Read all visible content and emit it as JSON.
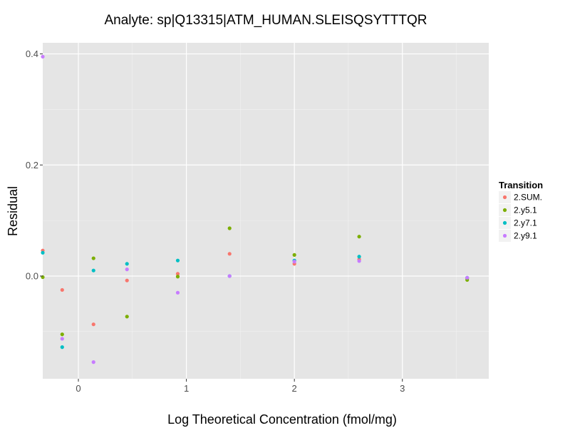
{
  "chart_data": {
    "type": "scatter",
    "title": "Analyte: sp|Q13315|ATM_HUMAN.SLEISQSYTTTQR",
    "xlabel": "Log Theoretical Concentration (fmol/mg)",
    "ylabel": "Residual",
    "xlim": [
      -0.33,
      3.8
    ],
    "ylim": [
      -0.185,
      0.42
    ],
    "x_ticks": [
      0,
      1,
      2,
      3
    ],
    "x_tick_labels": [
      "0",
      "1",
      "2",
      "3"
    ],
    "y_ticks": [
      0.0,
      0.2,
      0.4
    ],
    "y_tick_labels": [
      "0.0",
      "0.2",
      "0.4"
    ],
    "grid": true,
    "legend": {
      "title": "Transition",
      "position": "right"
    },
    "series": [
      {
        "name": "2.SUM.",
        "color": "#F8766D",
        "points": [
          [
            -0.33,
            0.046
          ],
          [
            -0.15,
            -0.025
          ],
          [
            0.14,
            -0.087
          ],
          [
            0.45,
            -0.008
          ],
          [
            0.92,
            0.004
          ],
          [
            1.4,
            0.04
          ],
          [
            2.0,
            0.022
          ],
          [
            2.6,
            0.03
          ],
          [
            3.6,
            -0.004
          ]
        ]
      },
      {
        "name": "2.y5.1",
        "color": "#7CAE00",
        "points": [
          [
            -0.33,
            -0.002
          ],
          [
            -0.15,
            -0.105
          ],
          [
            0.14,
            0.032
          ],
          [
            0.45,
            -0.073
          ],
          [
            0.92,
            -0.001
          ],
          [
            1.4,
            0.086
          ],
          [
            2.0,
            0.038
          ],
          [
            2.6,
            0.071
          ],
          [
            3.6,
            -0.007
          ]
        ]
      },
      {
        "name": "2.y7.1",
        "color": "#00BFC4",
        "points": [
          [
            -0.33,
            0.042
          ],
          [
            -0.15,
            -0.128
          ],
          [
            0.14,
            0.01
          ],
          [
            0.45,
            0.022
          ],
          [
            0.92,
            0.028
          ],
          [
            1.4,
            0.0
          ],
          [
            2.0,
            0.028
          ],
          [
            2.6,
            0.035
          ],
          [
            3.6,
            -0.003
          ]
        ]
      },
      {
        "name": "2.y9.1",
        "color": "#C77CFF",
        "points": [
          [
            -0.33,
            0.395
          ],
          [
            -0.15,
            -0.113
          ],
          [
            0.14,
            -0.155
          ],
          [
            0.45,
            0.012
          ],
          [
            0.92,
            -0.03
          ],
          [
            1.4,
            0.0
          ],
          [
            2.0,
            0.026
          ],
          [
            2.6,
            0.027
          ],
          [
            3.6,
            -0.003
          ]
        ]
      }
    ]
  }
}
